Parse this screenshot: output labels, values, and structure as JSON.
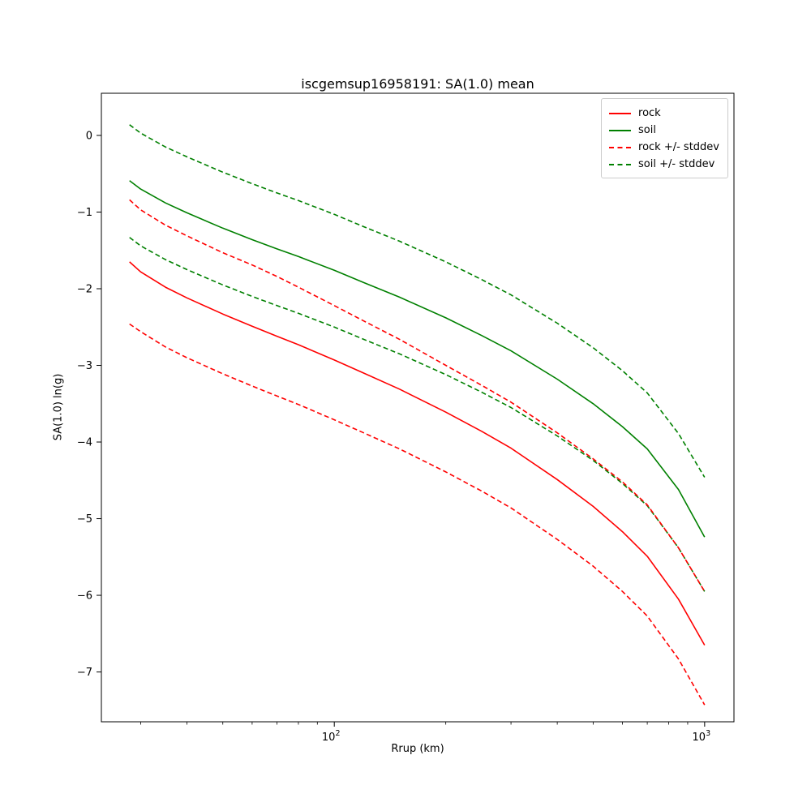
{
  "figure": {
    "title": "iscgemsup16958191: SA(1.0) mean",
    "xlabel": "Rrup (km)",
    "ylabel": "SA(1.0) ln(g)"
  },
  "chart_data": {
    "type": "line",
    "title": "iscgemsup16958191: SA(1.0) mean",
    "xlabel": "Rrup (km)",
    "ylabel": "SA(1.0) ln(g)",
    "x_scale": "log",
    "y_scale": "linear",
    "xlim": [
      23.5,
      1200
    ],
    "ylim": [
      -7.65,
      0.55
    ],
    "yticks": [
      0,
      -1,
      -2,
      -3,
      -4,
      -5,
      -6,
      -7
    ],
    "x_major_ticks": [
      100,
      1000
    ],
    "x_minor_ticks": [
      30,
      40,
      50,
      60,
      70,
      80,
      90,
      200,
      300,
      400,
      500,
      600,
      700,
      800,
      900
    ],
    "grid": false,
    "colors": {
      "rock": "#ff0000",
      "soil": "#008000"
    },
    "x": [
      28,
      30,
      35,
      40,
      50,
      60,
      70,
      80,
      100,
      120,
      150,
      200,
      250,
      300,
      400,
      500,
      600,
      700,
      850,
      1000
    ],
    "series": [
      {
        "id": "soil-plus-stddev",
        "legend": null,
        "color": "#008000",
        "dashed": true,
        "values": [
          0.14,
          0.03,
          -0.15,
          -0.28,
          -0.48,
          -0.63,
          -0.75,
          -0.85,
          -1.03,
          -1.19,
          -1.38,
          -1.65,
          -1.88,
          -2.08,
          -2.45,
          -2.77,
          -3.07,
          -3.36,
          -3.89,
          -4.46
        ]
      },
      {
        "id": "soil-mean",
        "legend": "soil",
        "color": "#008000",
        "dashed": false,
        "values": [
          -0.59,
          -0.7,
          -0.88,
          -1.01,
          -1.21,
          -1.36,
          -1.48,
          -1.58,
          -1.76,
          -1.92,
          -2.11,
          -2.38,
          -2.61,
          -2.81,
          -3.18,
          -3.5,
          -3.8,
          -4.09,
          -4.62,
          -5.24
        ]
      },
      {
        "id": "soil-minus-stddev",
        "legend": null,
        "color": "#008000",
        "dashed": true,
        "values": [
          -1.33,
          -1.44,
          -1.62,
          -1.75,
          -1.95,
          -2.1,
          -2.22,
          -2.32,
          -2.5,
          -2.66,
          -2.85,
          -3.12,
          -3.35,
          -3.55,
          -3.92,
          -4.24,
          -4.54,
          -4.83,
          -5.38,
          -5.95
        ]
      },
      {
        "id": "rock-plus-stddev",
        "legend": "rock +/- stddev",
        "color": "#ff0000",
        "dashed": true,
        "values": [
          -0.84,
          -0.97,
          -1.17,
          -1.31,
          -1.53,
          -1.69,
          -1.84,
          -1.98,
          -2.22,
          -2.42,
          -2.66,
          -3.0,
          -3.26,
          -3.48,
          -3.88,
          -4.22,
          -4.52,
          -4.82,
          -5.38,
          -5.95
        ]
      },
      {
        "id": "rock-mean",
        "legend": "rock",
        "color": "#ff0000",
        "dashed": false,
        "values": [
          -1.65,
          -1.78,
          -1.98,
          -2.12,
          -2.33,
          -2.49,
          -2.62,
          -2.73,
          -2.93,
          -3.1,
          -3.31,
          -3.61,
          -3.86,
          -4.08,
          -4.49,
          -4.84,
          -5.17,
          -5.49,
          -6.05,
          -6.65
        ]
      },
      {
        "id": "rock-minus-stddev",
        "legend": null,
        "color": "#ff0000",
        "dashed": true,
        "values": [
          -2.46,
          -2.56,
          -2.76,
          -2.9,
          -3.11,
          -3.27,
          -3.4,
          -3.51,
          -3.71,
          -3.88,
          -4.09,
          -4.39,
          -4.64,
          -4.86,
          -5.27,
          -5.62,
          -5.95,
          -6.27,
          -6.83,
          -7.43
        ]
      }
    ],
    "legend": {
      "position": "upper right",
      "entries": [
        {
          "label": "rock",
          "color": "#ff0000",
          "dashed": false
        },
        {
          "label": "soil",
          "color": "#008000",
          "dashed": false
        },
        {
          "label": "rock +/- stddev",
          "color": "#ff0000",
          "dashed": true
        },
        {
          "label": "soil +/- stddev",
          "color": "#008000",
          "dashed": true
        }
      ]
    }
  }
}
